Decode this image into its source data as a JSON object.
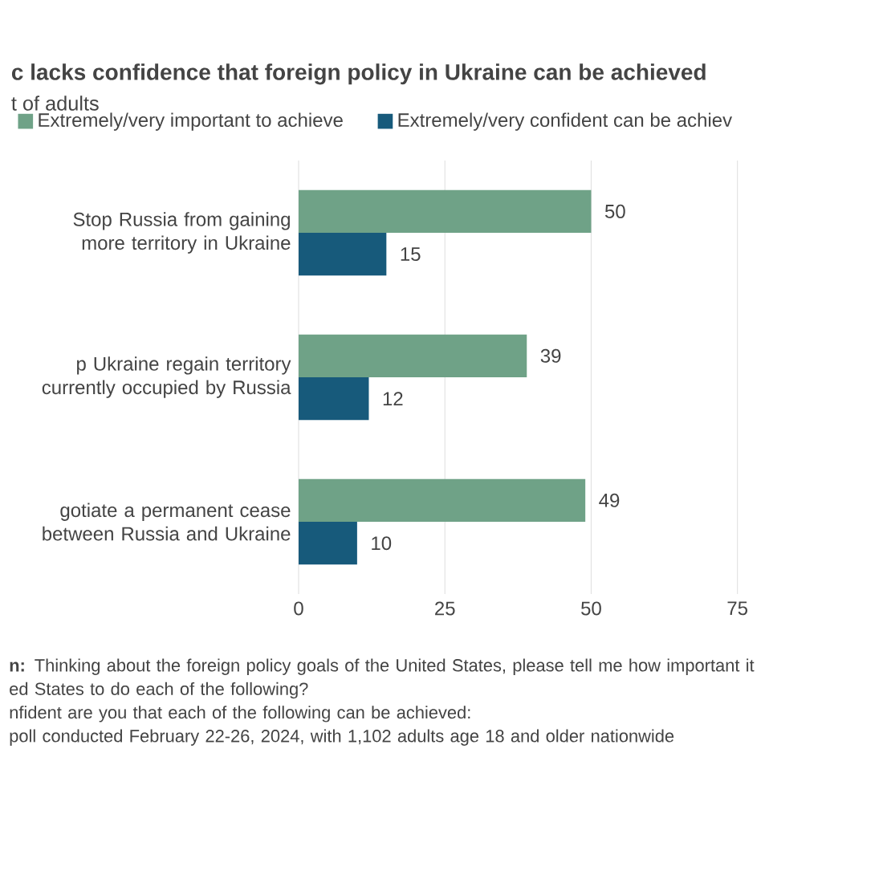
{
  "chart_data": {
    "type": "bar",
    "orientation": "horizontal",
    "title": "c lacks confidence that foreign policy in Ukraine can be achieved",
    "subtitle": "t of adults",
    "categories": [
      "Stop Russia from gaining more territory in Ukraine",
      "p Ukraine regain territory currently occupied by Russia",
      "gotiate a permanent cease between Russia and Ukraine"
    ],
    "series": [
      {
        "name": "Extremely/very important to achieve",
        "color": "#6fa287",
        "values": [
          50,
          39,
          49
        ]
      },
      {
        "name": "Extremely/very confident can be achiev",
        "color": "#175a7b",
        "values": [
          15,
          12,
          10
        ]
      }
    ],
    "xlim": [
      0,
      75
    ],
    "xticks": [
      0,
      25,
      50,
      75
    ],
    "grid": "x",
    "legend": "top",
    "data_labels": true,
    "annotations": [
      "**n:** Thinking about the foreign policy goals of the United States, please tell me how important it",
      "ed States to do each of the following?",
      "nfident are you that each of the following can be achieved:",
      "poll conducted February 22-26, 2024, with 1,102 adults age 18 and older nationwide"
    ]
  }
}
